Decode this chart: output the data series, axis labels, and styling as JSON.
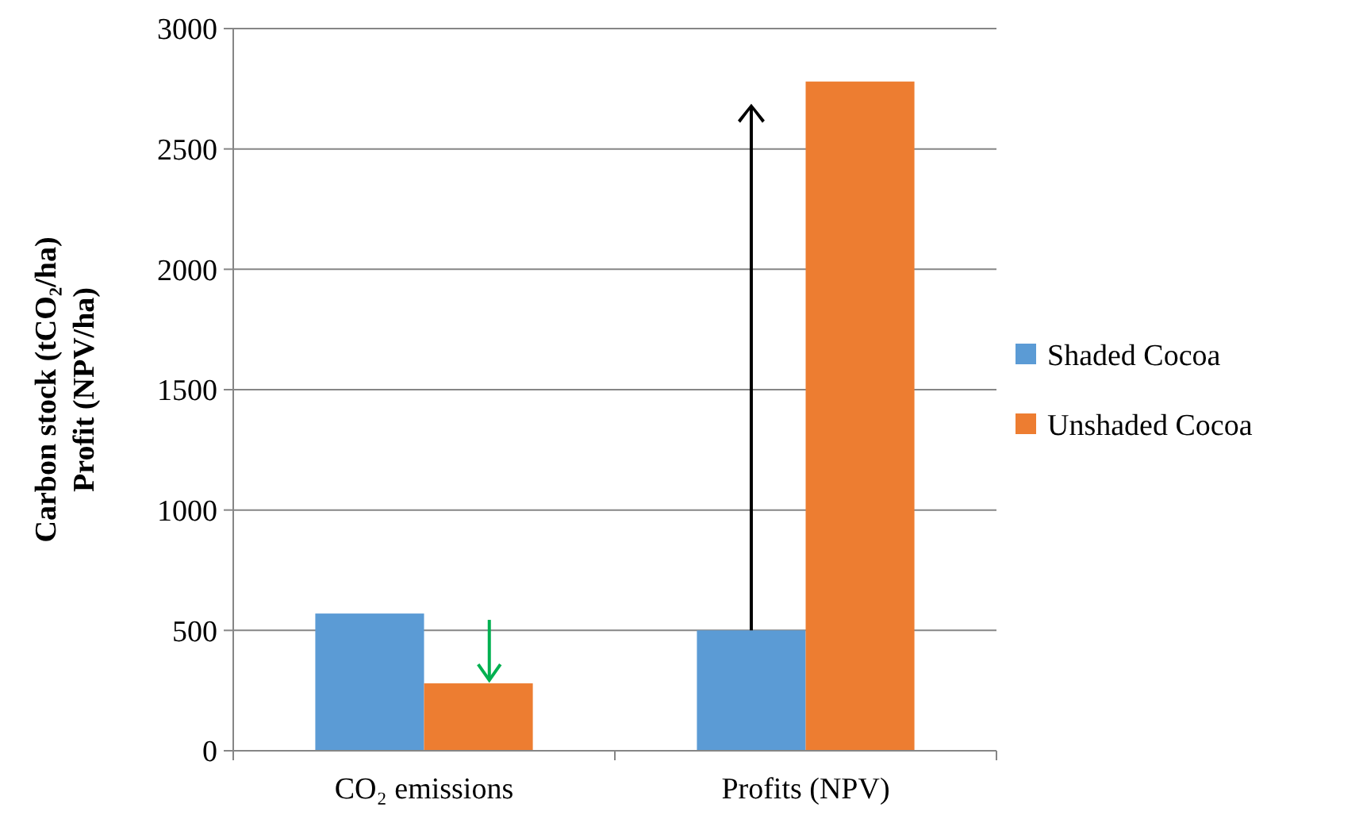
{
  "chart_data": {
    "type": "bar",
    "categories": [
      "CO₂ emissions",
      "Profits (NPV)"
    ],
    "series": [
      {
        "name": "Shaded Cocoa",
        "color": "#5b9bd5",
        "values": [
          570,
          500
        ]
      },
      {
        "name": "Unshaded Cocoa",
        "color": "#ed7d31",
        "values": [
          280,
          2780
        ]
      }
    ],
    "ylabel": "Carbon stock (tCO₂/ha)\nProfit (NPV/ha)",
    "ylim": [
      0,
      3000
    ],
    "yticks": [
      0,
      500,
      1000,
      1500,
      2000,
      2500,
      3000
    ],
    "grid": "y",
    "legend": "right"
  }
}
